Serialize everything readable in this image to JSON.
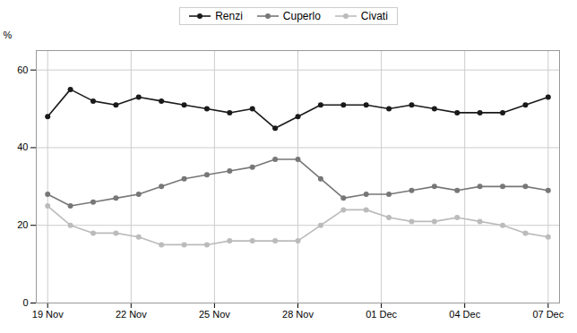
{
  "chart_data": {
    "type": "line",
    "ylabel": "%",
    "series": [
      {
        "name": "Renzi",
        "color": "#1a1a1a",
        "marker": "circle",
        "line_style": "solid",
        "values": [
          48,
          55,
          52,
          51,
          53,
          52,
          51,
          50,
          49,
          50,
          45,
          48,
          51,
          51,
          51,
          50,
          51,
          50,
          49,
          49,
          49,
          51,
          53
        ]
      },
      {
        "name": "Cuperlo",
        "color": "#777777",
        "marker": "circle",
        "line_style": "solid",
        "values": [
          28,
          25,
          26,
          27,
          28,
          30,
          32,
          33,
          34,
          35,
          37,
          37,
          32,
          27,
          28,
          28,
          29,
          30,
          29,
          30,
          30,
          30,
          29
        ]
      },
      {
        "name": "Civati",
        "color": "#bbbbbb",
        "marker": "circle",
        "line_style": "solid",
        "values": [
          25,
          20,
          18,
          18,
          17,
          15,
          15,
          15,
          16,
          16,
          16,
          16,
          20,
          24,
          24,
          22,
          21,
          21,
          22,
          21,
          20,
          18,
          17
        ]
      }
    ],
    "xlim": [
      -0.5,
      22.5
    ],
    "xticks": [
      {
        "value": 0,
        "label": "19 Nov"
      },
      {
        "value": 3.6666666666666665,
        "label": "22 Nov"
      },
      {
        "value": 7.333333333333333,
        "label": "25 Nov"
      },
      {
        "value": 11,
        "label": "28 Nov"
      },
      {
        "value": 14.666666666666666,
        "label": "01 Dec"
      },
      {
        "value": 18.333333333333332,
        "label": "04 Dec"
      },
      {
        "value": 22,
        "label": "07 Dec"
      }
    ],
    "ylim": [
      0,
      65
    ],
    "yticks": [
      0,
      20,
      40,
      60
    ],
    "grid": true,
    "legend": "top"
  }
}
